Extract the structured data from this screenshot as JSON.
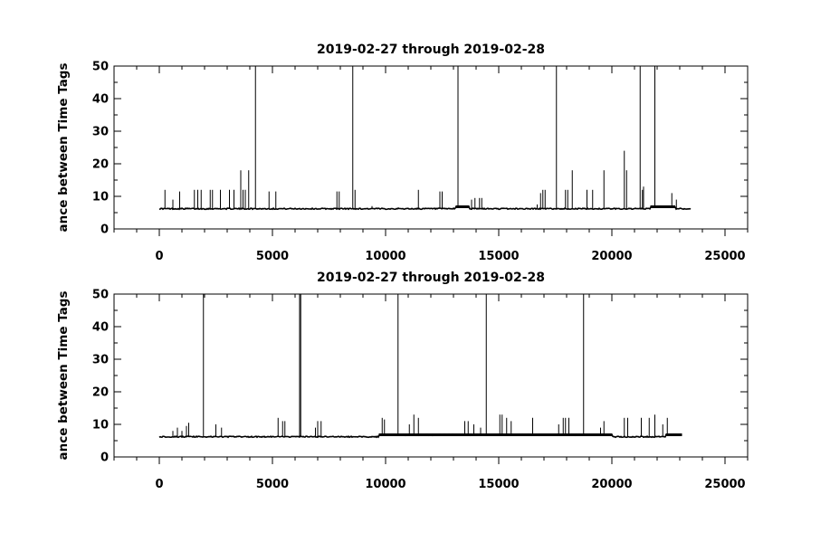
{
  "chart_data": [
    {
      "type": "line",
      "title": "2019-02-27 through 2019-02-28",
      "xlabel": "",
      "ylabel": "ance between Time Tags",
      "xlim": [
        -2000,
        26000
      ],
      "ylim": [
        0,
        50
      ],
      "xticks": [
        0,
        5000,
        10000,
        15000,
        20000,
        25000
      ],
      "yticks": [
        0,
        10,
        20,
        30,
        40,
        50
      ],
      "xtick_labels": [
        "0",
        "5000",
        "10000",
        "15000",
        "20000",
        "25000"
      ],
      "ytick_labels": [
        "0",
        "10",
        "20",
        "30",
        "40",
        "50"
      ],
      "grid": false,
      "x_range": [
        0,
        23500
      ],
      "baseline": 6.2,
      "plateaus": [
        {
          "x0": 13100,
          "x1": 13700,
          "y": 6.8
        },
        {
          "x0": 21700,
          "x1": 22800,
          "y": 6.8
        }
      ],
      "spikes": [
        {
          "x": 250,
          "y": 12
        },
        {
          "x": 600,
          "y": 9
        },
        {
          "x": 900,
          "y": 11.5
        },
        {
          "x": 1550,
          "y": 12
        },
        {
          "x": 1700,
          "y": 12
        },
        {
          "x": 1850,
          "y": 12
        },
        {
          "x": 2250,
          "y": 12
        },
        {
          "x": 2350,
          "y": 12
        },
        {
          "x": 2700,
          "y": 12
        },
        {
          "x": 3100,
          "y": 12
        },
        {
          "x": 3300,
          "y": 12
        },
        {
          "x": 3600,
          "y": 18
        },
        {
          "x": 3700,
          "y": 12
        },
        {
          "x": 3800,
          "y": 12
        },
        {
          "x": 3950,
          "y": 18
        },
        {
          "x": 4250,
          "y": 50
        },
        {
          "x": 4850,
          "y": 11.5
        },
        {
          "x": 5150,
          "y": 11.5
        },
        {
          "x": 7850,
          "y": 11.5
        },
        {
          "x": 7950,
          "y": 11.5
        },
        {
          "x": 8550,
          "y": 50
        },
        {
          "x": 8650,
          "y": 12
        },
        {
          "x": 9400,
          "y": 7
        },
        {
          "x": 11450,
          "y": 12
        },
        {
          "x": 12400,
          "y": 11.5
        },
        {
          "x": 12500,
          "y": 11.5
        },
        {
          "x": 13200,
          "y": 50
        },
        {
          "x": 13800,
          "y": 9
        },
        {
          "x": 13950,
          "y": 9.5
        },
        {
          "x": 14150,
          "y": 9.5
        },
        {
          "x": 14250,
          "y": 9.5
        },
        {
          "x": 16700,
          "y": 7.5
        },
        {
          "x": 16850,
          "y": 11
        },
        {
          "x": 16950,
          "y": 12
        },
        {
          "x": 17050,
          "y": 12
        },
        {
          "x": 17550,
          "y": 50
        },
        {
          "x": 17950,
          "y": 12
        },
        {
          "x": 18050,
          "y": 12
        },
        {
          "x": 18250,
          "y": 18
        },
        {
          "x": 18900,
          "y": 12
        },
        {
          "x": 19150,
          "y": 12
        },
        {
          "x": 19650,
          "y": 18
        },
        {
          "x": 20550,
          "y": 24
        },
        {
          "x": 20650,
          "y": 18
        },
        {
          "x": 21250,
          "y": 50
        },
        {
          "x": 21350,
          "y": 12
        },
        {
          "x": 21400,
          "y": 13
        },
        {
          "x": 21900,
          "y": 50
        },
        {
          "x": 22650,
          "y": 11
        },
        {
          "x": 22850,
          "y": 9
        }
      ]
    },
    {
      "type": "line",
      "title": "2019-02-27 through 2019-02-28",
      "xlabel": "",
      "ylabel": "ance between Time Tags",
      "xlim": [
        -2000,
        26000
      ],
      "ylim": [
        0,
        50
      ],
      "xticks": [
        0,
        5000,
        10000,
        15000,
        20000,
        25000
      ],
      "yticks": [
        0,
        10,
        20,
        30,
        40,
        50
      ],
      "xtick_labels": [
        "0",
        "5000",
        "10000",
        "15000",
        "20000",
        "25000"
      ],
      "ytick_labels": [
        "0",
        "10",
        "20",
        "30",
        "40",
        "50"
      ],
      "grid": false,
      "x_range": [
        0,
        23100
      ],
      "baseline": 6.2,
      "plateaus": [
        {
          "x0": 9700,
          "x1": 12900,
          "y": 6.8
        },
        {
          "x0": 12900,
          "x1": 18400,
          "y": 6.8
        },
        {
          "x0": 18400,
          "x1": 20000,
          "y": 6.8
        },
        {
          "x0": 22400,
          "x1": 23100,
          "y": 6.8
        }
      ],
      "spikes": [
        {
          "x": 600,
          "y": 8
        },
        {
          "x": 800,
          "y": 9
        },
        {
          "x": 1000,
          "y": 8
        },
        {
          "x": 1200,
          "y": 9.5
        },
        {
          "x": 1300,
          "y": 10.5
        },
        {
          "x": 1950,
          "y": 50
        },
        {
          "x": 2500,
          "y": 10
        },
        {
          "x": 2750,
          "y": 9
        },
        {
          "x": 5250,
          "y": 12
        },
        {
          "x": 5450,
          "y": 11
        },
        {
          "x": 5550,
          "y": 11
        },
        {
          "x": 6200,
          "y": 50
        },
        {
          "x": 6250,
          "y": 50
        },
        {
          "x": 6900,
          "y": 9
        },
        {
          "x": 7000,
          "y": 11
        },
        {
          "x": 7150,
          "y": 11
        },
        {
          "x": 9850,
          "y": 12
        },
        {
          "x": 9950,
          "y": 11.5
        },
        {
          "x": 10550,
          "y": 50
        },
        {
          "x": 11050,
          "y": 10
        },
        {
          "x": 11250,
          "y": 13
        },
        {
          "x": 11450,
          "y": 12
        },
        {
          "x": 13500,
          "y": 11
        },
        {
          "x": 13650,
          "y": 11
        },
        {
          "x": 13900,
          "y": 10
        },
        {
          "x": 14200,
          "y": 9
        },
        {
          "x": 14450,
          "y": 50
        },
        {
          "x": 15050,
          "y": 13
        },
        {
          "x": 15150,
          "y": 13
        },
        {
          "x": 15350,
          "y": 12
        },
        {
          "x": 15550,
          "y": 11
        },
        {
          "x": 16500,
          "y": 12
        },
        {
          "x": 17650,
          "y": 10
        },
        {
          "x": 17850,
          "y": 12
        },
        {
          "x": 17950,
          "y": 12
        },
        {
          "x": 18100,
          "y": 12
        },
        {
          "x": 18750,
          "y": 50
        },
        {
          "x": 19500,
          "y": 9
        },
        {
          "x": 19650,
          "y": 11
        },
        {
          "x": 20550,
          "y": 12
        },
        {
          "x": 20700,
          "y": 12
        },
        {
          "x": 21300,
          "y": 12
        },
        {
          "x": 21650,
          "y": 12
        },
        {
          "x": 21900,
          "y": 13
        },
        {
          "x": 22250,
          "y": 10
        },
        {
          "x": 22450,
          "y": 12
        }
      ]
    }
  ]
}
